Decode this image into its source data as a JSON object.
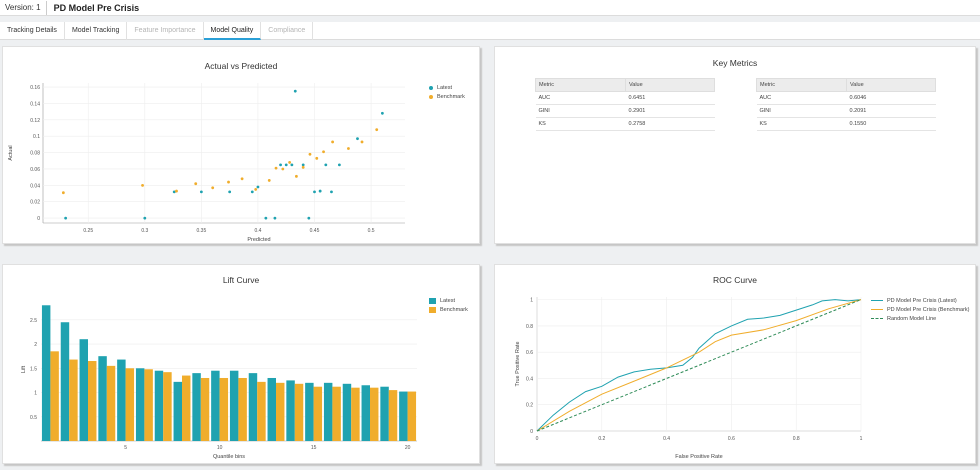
{
  "header": {
    "version": "Version: 1",
    "title": "PD Model Pre Crisis"
  },
  "tabs": [
    {
      "label": "Tracking Details",
      "state": "normal"
    },
    {
      "label": "Model Tracking",
      "state": "normal"
    },
    {
      "label": "Feature Importance",
      "state": "disabled"
    },
    {
      "label": "Model Quality",
      "state": "active"
    },
    {
      "label": "Compliance",
      "state": "disabled"
    }
  ],
  "colors": {
    "latest": "#1fa2b0",
    "benchmark": "#f0ad2c",
    "random": "#2e8b57",
    "accent": "#2a9fd6"
  },
  "charts": {
    "scatter": {
      "title": "Actual vs Predicted",
      "xlabel": "Predicted",
      "ylabel": "Actual",
      "legend": [
        "Latest",
        "Benchmark"
      ],
      "chart_data": {
        "type": "scatter",
        "xlim": [
          0.21,
          0.53
        ],
        "ylim": [
          -0.006,
          0.165
        ],
        "xticks": [
          0.25,
          0.3,
          0.35,
          0.4,
          0.45,
          0.5
        ],
        "yticks": [
          0,
          0.02,
          0.04,
          0.06,
          0.08,
          0.1,
          0.12,
          0.14,
          0.16
        ],
        "series": [
          {
            "name": "Latest",
            "points": [
              [
                0.23,
                0
              ],
              [
                0.3,
                0
              ],
              [
                0.326,
                0.032
              ],
              [
                0.35,
                0.032
              ],
              [
                0.375,
                0.032
              ],
              [
                0.395,
                0.032
              ],
              [
                0.4,
                0.038
              ],
              [
                0.407,
                0
              ],
              [
                0.415,
                0
              ],
              [
                0.42,
                0.065
              ],
              [
                0.425,
                0.065
              ],
              [
                0.43,
                0.065
              ],
              [
                0.433,
                0.155
              ],
              [
                0.44,
                0.065
              ],
              [
                0.445,
                0
              ],
              [
                0.45,
                0.032
              ],
              [
                0.455,
                0.033
              ],
              [
                0.46,
                0.065
              ],
              [
                0.465,
                0.032
              ],
              [
                0.472,
                0.065
              ],
              [
                0.488,
                0.097
              ],
              [
                0.51,
                0.128
              ]
            ]
          },
          {
            "name": "Benchmark",
            "points": [
              [
                0.228,
                0.031
              ],
              [
                0.298,
                0.04
              ],
              [
                0.328,
                0.033
              ],
              [
                0.345,
                0.042
              ],
              [
                0.36,
                0.037
              ],
              [
                0.374,
                0.044
              ],
              [
                0.386,
                0.048
              ],
              [
                0.398,
                0.035
              ],
              [
                0.41,
                0.046
              ],
              [
                0.416,
                0.061
              ],
              [
                0.422,
                0.06
              ],
              [
                0.428,
                0.068
              ],
              [
                0.434,
                0.051
              ],
              [
                0.44,
                0.062
              ],
              [
                0.446,
                0.078
              ],
              [
                0.452,
                0.073
              ],
              [
                0.458,
                0.081
              ],
              [
                0.466,
                0.093
              ],
              [
                0.48,
                0.085
              ],
              [
                0.492,
                0.093
              ],
              [
                0.505,
                0.108
              ]
            ]
          }
        ]
      }
    },
    "metrics": {
      "title": "Key Metrics",
      "tables": [
        {
          "headers": [
            "Metric",
            "Value"
          ],
          "rows": [
            [
              "AUC",
              "0.6451"
            ],
            [
              "GINI",
              "0.2901"
            ],
            [
              "KS",
              "0.2758"
            ]
          ]
        },
        {
          "headers": [
            "Metric",
            "Value"
          ],
          "rows": [
            [
              "AUC",
              "0.6046"
            ],
            [
              "GINI",
              "0.2091"
            ],
            [
              "KS",
              "0.1550"
            ]
          ]
        }
      ]
    },
    "lift": {
      "title": "Lift Curve",
      "xlabel": "Quantile bins",
      "ylabel": "Lift",
      "legend": [
        "Latest",
        "Benchmark"
      ],
      "chart_data": {
        "type": "bar",
        "ylim": [
          0,
          2.95
        ],
        "yticks": [
          0.5,
          1,
          1.5,
          2,
          2.5
        ],
        "xticks": [
          5,
          10,
          15,
          20
        ],
        "categories": [
          1,
          2,
          3,
          4,
          5,
          6,
          7,
          8,
          9,
          10,
          11,
          12,
          13,
          14,
          15,
          16,
          17,
          18,
          19,
          20
        ],
        "series": [
          {
            "name": "Latest",
            "values": [
              2.8,
              2.45,
              2.1,
              1.75,
              1.68,
              1.5,
              1.45,
              1.22,
              1.4,
              1.45,
              1.45,
              1.4,
              1.3,
              1.25,
              1.2,
              1.2,
              1.18,
              1.15,
              1.12,
              1.02
            ]
          },
          {
            "name": "Benchmark",
            "values": [
              1.85,
              1.68,
              1.65,
              1.55,
              1.5,
              1.48,
              1.42,
              1.35,
              1.3,
              1.3,
              1.3,
              1.22,
              1.2,
              1.18,
              1.12,
              1.12,
              1.1,
              1.1,
              1.05,
              1.02
            ]
          }
        ]
      }
    },
    "roc": {
      "title": "ROC Curve",
      "xlabel": "False Positive Rate",
      "ylabel": "True Positive Rate",
      "legend": [
        "PD Model Pre Crisis (Latest)",
        "PD Model Pre Crisis (Benchmark)",
        "Random Model Line"
      ],
      "chart_data": {
        "type": "line",
        "xlim": [
          0,
          1
        ],
        "ylim": [
          0,
          1.02
        ],
        "xticks": [
          0,
          0.2,
          0.4,
          0.6,
          0.8,
          1
        ],
        "yticks": [
          0,
          0.2,
          0.4,
          0.6,
          0.8,
          1
        ],
        "series": [
          {
            "name": "PD Model Pre Crisis (Latest)",
            "points": [
              [
                0,
                0
              ],
              [
                0.05,
                0.12
              ],
              [
                0.1,
                0.22
              ],
              [
                0.15,
                0.3
              ],
              [
                0.2,
                0.34
              ],
              [
                0.25,
                0.41
              ],
              [
                0.3,
                0.45
              ],
              [
                0.35,
                0.47
              ],
              [
                0.4,
                0.48
              ],
              [
                0.45,
                0.5
              ],
              [
                0.48,
                0.56
              ],
              [
                0.5,
                0.63
              ],
              [
                0.55,
                0.74
              ],
              [
                0.6,
                0.8
              ],
              [
                0.65,
                0.85
              ],
              [
                0.7,
                0.86
              ],
              [
                0.75,
                0.88
              ],
              [
                0.8,
                0.92
              ],
              [
                0.85,
                0.96
              ],
              [
                0.88,
                0.99
              ],
              [
                0.92,
                1
              ],
              [
                0.96,
                0.99
              ],
              [
                1,
                1
              ]
            ]
          },
          {
            "name": "PD Model Pre Crisis (Benchmark)",
            "points": [
              [
                0,
                0
              ],
              [
                0.1,
                0.15
              ],
              [
                0.2,
                0.28
              ],
              [
                0.3,
                0.38
              ],
              [
                0.4,
                0.48
              ],
              [
                0.5,
                0.6
              ],
              [
                0.55,
                0.68
              ],
              [
                0.6,
                0.73
              ],
              [
                0.7,
                0.77
              ],
              [
                0.8,
                0.84
              ],
              [
                0.9,
                0.93
              ],
              [
                1,
                1
              ]
            ]
          },
          {
            "name": "Random Model Line",
            "points": [
              [
                0,
                0
              ],
              [
                1,
                1
              ]
            ]
          }
        ]
      }
    }
  }
}
